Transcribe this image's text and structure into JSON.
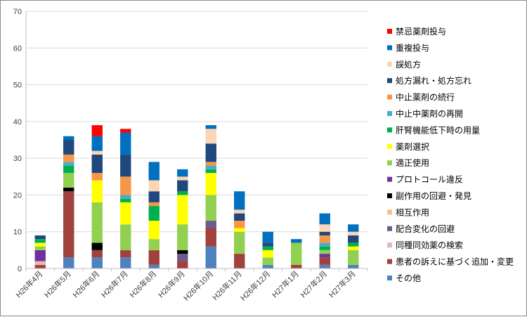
{
  "chart_data": {
    "type": "bar",
    "stacked": true,
    "title": "",
    "xlabel": "",
    "ylabel": "",
    "ylim": [
      0,
      70
    ],
    "y_ticks": [
      0,
      10,
      20,
      30,
      40,
      50,
      60,
      70
    ],
    "grid": true,
    "legend_position": "right",
    "categories": [
      "H26年4月",
      "H26年5月",
      "H26年6月",
      "H26年7月",
      "H26年8月",
      "H26年9月",
      "H26年10月",
      "H26年11月",
      "H26年12月",
      "H27年1月",
      "H27年2月",
      "H27年3月"
    ],
    "series": [
      {
        "name": "その他",
        "color": "#4f81bd",
        "values": [
          0,
          3,
          3,
          3,
          1,
          0,
          6,
          0,
          1,
          0,
          1,
          1
        ]
      },
      {
        "name": "患者の訴えに基づく追加・変更",
        "color": "#a0413e",
        "values": [
          1,
          18,
          2,
          2,
          4,
          2,
          5,
          4,
          0,
          1,
          2,
          0
        ]
      },
      {
        "name": "同種同効薬の検索",
        "color": "#e6b9b8",
        "values": [
          1,
          0,
          0,
          0,
          0,
          0,
          0,
          0,
          0,
          0,
          0,
          0
        ]
      },
      {
        "name": "配合変化の回避",
        "color": "#6d5b8e",
        "values": [
          0,
          0,
          0,
          0,
          0,
          2,
          2,
          0,
          0,
          0,
          0,
          0
        ]
      },
      {
        "name": "相互作用",
        "color": "#f9bf8f",
        "values": [
          0,
          0,
          0,
          0,
          0,
          0,
          0,
          0,
          0,
          0,
          0,
          0
        ]
      },
      {
        "name": "副作用の回避・発見",
        "color": "#000000",
        "values": [
          0,
          1,
          2,
          0,
          0,
          1,
          0,
          0,
          0,
          0,
          0,
          0
        ]
      },
      {
        "name": "プロトコール違反",
        "color": "#7030a0",
        "values": [
          3,
          0,
          0,
          0,
          0,
          0,
          0,
          0,
          0,
          0,
          1,
          0
        ]
      },
      {
        "name": "適正使用",
        "color": "#92d050",
        "values": [
          1,
          4,
          11,
          7,
          3,
          7,
          7,
          6,
          2,
          6,
          1,
          4
        ]
      },
      {
        "name": "薬剤選択",
        "color": "#ffff00",
        "values": [
          1,
          0,
          6,
          6,
          5,
          8,
          6,
          1,
          2,
          0,
          0,
          1
        ]
      },
      {
        "name": "肝腎機能低下時の用量",
        "color": "#00b050",
        "values": [
          1,
          2,
          0,
          1,
          4,
          1,
          1,
          0,
          1,
          0,
          1,
          1
        ]
      },
      {
        "name": "中止中薬剤の再開",
        "color": "#4bacc6",
        "values": [
          0,
          1,
          0,
          1,
          0,
          0,
          1,
          0,
          0,
          0,
          1,
          0
        ]
      },
      {
        "name": "中止薬剤の続行",
        "color": "#f79646",
        "values": [
          0,
          2,
          2,
          5,
          1,
          0,
          1,
          2,
          0,
          0,
          2,
          0
        ]
      },
      {
        "name": "処方漏れ・処方忘れ",
        "color": "#1f497d",
        "values": [
          1,
          4,
          5,
          6,
          3,
          3,
          5,
          2,
          1,
          0,
          1,
          2
        ]
      },
      {
        "name": "誤処方",
        "color": "#fcd5b5",
        "values": [
          0,
          0,
          1,
          0,
          3,
          1,
          4,
          1,
          0,
          0,
          2,
          1
        ]
      },
      {
        "name": "重複投与",
        "color": "#0070c0",
        "values": [
          0,
          1,
          4,
          6,
          5,
          2,
          1,
          5,
          3,
          1,
          3,
          2
        ]
      },
      {
        "name": "禁忌薬剤投与",
        "color": "#ff0000",
        "values": [
          0,
          0,
          3,
          1,
          0,
          0,
          0,
          0,
          0,
          0,
          0,
          0
        ]
      }
    ]
  }
}
